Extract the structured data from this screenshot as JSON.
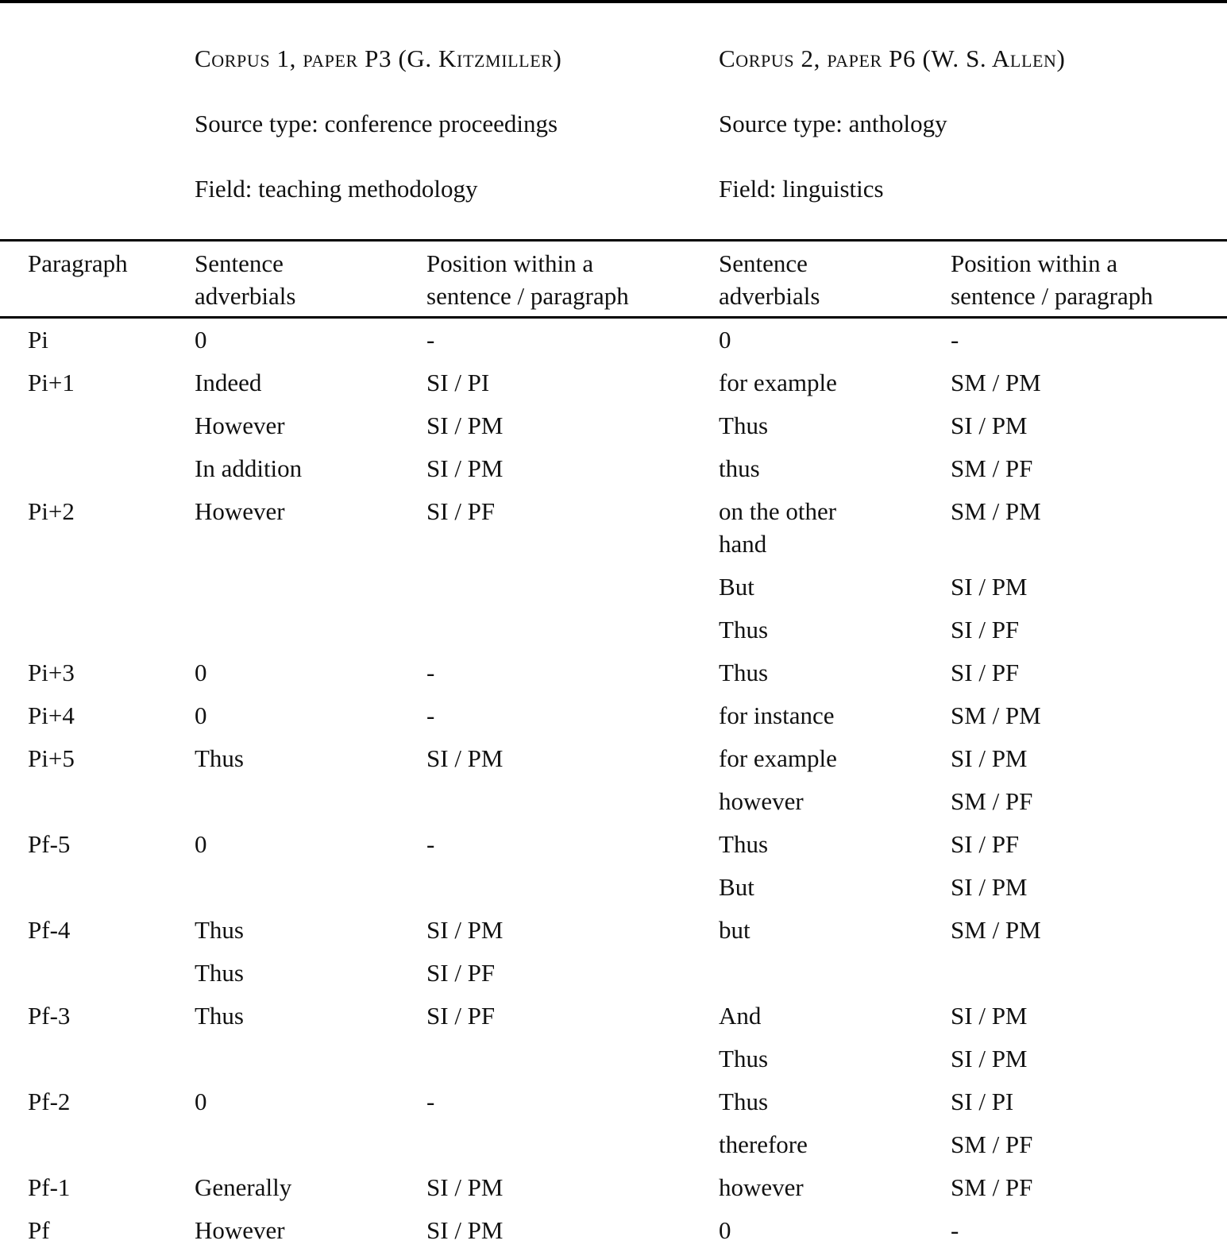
{
  "table": {
    "corpus_headers": [
      {
        "title": "Corpus 1, paper P3 (G. Kitzmiller)",
        "source_type": "Source type: conference proceedings",
        "field": "Field: teaching methodology"
      },
      {
        "title": "Corpus 2, paper P6 (W. S. Allen)",
        "source_type": "Source type: anthology",
        "field": "Field: linguistics"
      }
    ],
    "column_headers": [
      "Paragraph",
      "Sentence\nadverbials",
      "Position within a\nsentence / paragraph",
      "Sentence\nadverbials",
      "Position within a\nsentence / paragraph"
    ],
    "rows": [
      [
        "Pi",
        "0",
        "-",
        "0",
        "-"
      ],
      [
        "Pi+1",
        "Indeed",
        "SI / PI",
        "for example",
        "SM / PM"
      ],
      [
        "",
        "However",
        "SI / PM",
        "Thus",
        "SI / PM"
      ],
      [
        "",
        "In addition",
        "SI / PM",
        "thus",
        "SM / PF"
      ],
      [
        "Pi+2",
        "However",
        "SI / PF",
        "on the other\nhand",
        "SM / PM"
      ],
      [
        "",
        "",
        "",
        "But",
        "SI / PM"
      ],
      [
        "",
        "",
        "",
        "Thus",
        "SI / PF"
      ],
      [
        "Pi+3",
        "0",
        "-",
        "Thus",
        "SI / PF"
      ],
      [
        "Pi+4",
        "0",
        "-",
        "for instance",
        "SM / PM"
      ],
      [
        "Pi+5",
        "Thus",
        "SI / PM",
        "for example",
        "SI / PM"
      ],
      [
        "",
        "",
        "",
        "however",
        "SM / PF"
      ],
      [
        "Pf-5",
        "0",
        "-",
        "Thus",
        "SI / PF"
      ],
      [
        "",
        "",
        "",
        "But",
        "SI / PM"
      ],
      [
        "Pf-4",
        "Thus",
        "SI / PM",
        "but",
        "SM / PM"
      ],
      [
        "",
        "Thus",
        "SI / PF",
        "",
        ""
      ],
      [
        "Pf-3",
        "Thus",
        "SI / PF",
        "And",
        "SI / PM"
      ],
      [
        "",
        "",
        "",
        "Thus",
        "SI / PM"
      ],
      [
        "Pf-2",
        "0",
        "-",
        "Thus",
        "SI / PI"
      ],
      [
        "",
        "",
        "",
        "therefore",
        "SM / PF"
      ],
      [
        "Pf-1",
        "Generally",
        "SI / PM",
        "however",
        "SM / PF"
      ],
      [
        "Pf",
        "However",
        "SI / PM",
        "0",
        "-"
      ]
    ]
  }
}
